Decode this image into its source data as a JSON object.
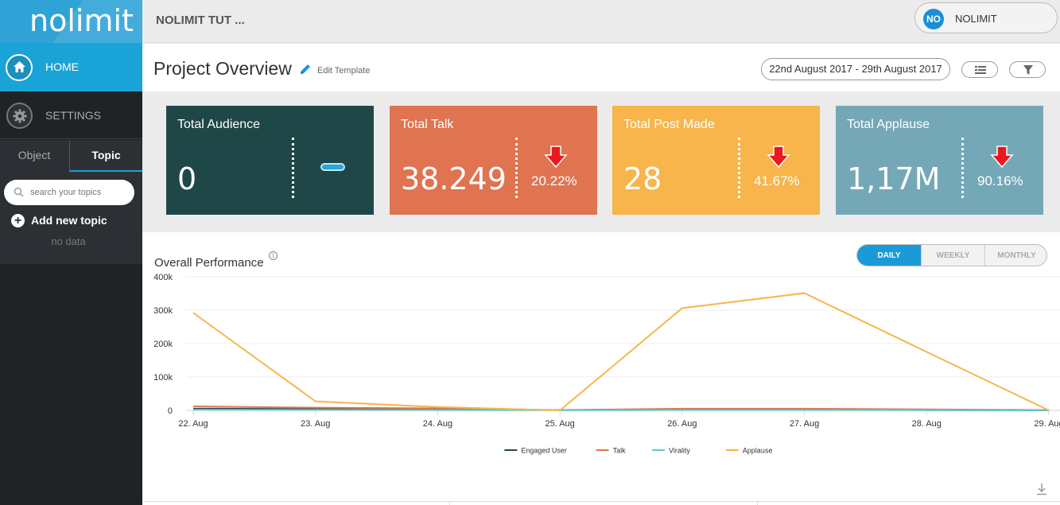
{
  "sidebar": {
    "logo": "nolimit",
    "nav": [
      {
        "label": "HOME",
        "icon": "home-icon"
      },
      {
        "label": "SETTINGS",
        "icon": "gear-icon"
      }
    ],
    "tabs": [
      {
        "label": "Object"
      },
      {
        "label": "Topic"
      }
    ],
    "search_placeholder": "search your topics",
    "add_topic_label": "Add new topic",
    "empty_text": "no data"
  },
  "header": {
    "project_name": "NOLIMIT TUT ...",
    "user_initials": "NO",
    "user_name": "NOLIMIT"
  },
  "overview": {
    "title": "Project Overview",
    "edit_label": "Edit Template",
    "date_range": "22nd August 2017 - 29th August 2017"
  },
  "cards": [
    {
      "title": "Total Audience",
      "value": "0",
      "pct": "",
      "color": "#1f4747"
    },
    {
      "title": "Total Talk",
      "value": "38.249",
      "pct": "20.22%",
      "color": "#e07350"
    },
    {
      "title": "Total Post Made",
      "value": "28",
      "pct": "41.67%",
      "color": "#f7b54c"
    },
    {
      "title": "Total Applause",
      "value": "1,17M",
      "pct": "90.16%",
      "color": "#74a8b7"
    }
  ],
  "performance": {
    "title": "Overall Performance",
    "periods": [
      "DAILY",
      "WEEKLY",
      "MONTHLY"
    ],
    "active_period": "DAILY"
  },
  "chart_data": {
    "type": "line",
    "x": [
      "22. Aug",
      "23. Aug",
      "24. Aug",
      "25. Aug",
      "26. Aug",
      "27. Aug",
      "28. Aug",
      "29. Aug"
    ],
    "y_ticks": [
      "0",
      "100k",
      "200k",
      "300k",
      "400k"
    ],
    "ylim": [
      0,
      400000
    ],
    "series": [
      {
        "name": "Engaged User",
        "color": "#1f4747",
        "values": [
          5000,
          4000,
          3000,
          1000,
          2000,
          2000,
          1000,
          500
        ]
      },
      {
        "name": "Talk",
        "color": "#e07350",
        "values": [
          12000,
          8000,
          6000,
          1000,
          5000,
          5000,
          3000,
          1000
        ]
      },
      {
        "name": "Virality",
        "color": "#5cc9c9",
        "values": [
          2000,
          1500,
          1000,
          500,
          1000,
          1000,
          800,
          300
        ]
      },
      {
        "name": "Applause",
        "color": "#f7b54c",
        "values": [
          292000,
          27000,
          10000,
          0,
          306000,
          351000,
          175000,
          0
        ]
      }
    ],
    "legend_position": "bottom-center",
    "grid": true
  }
}
